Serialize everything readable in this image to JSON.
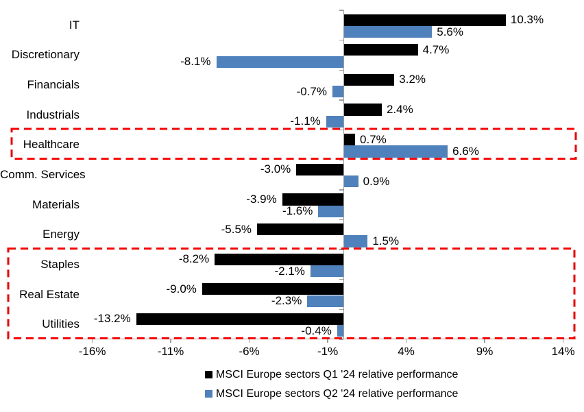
{
  "chart_data": {
    "type": "bar",
    "orientation": "horizontal",
    "title": "",
    "xlabel": "",
    "ylabel": "",
    "xlim": [
      -17.2,
      15.3
    ],
    "grid": false,
    "legend_position": "bottom",
    "axis_color": "#9d9d9d",
    "highlight_color": "#FF0000",
    "categories": [
      "IT",
      "Discretionary",
      "Financials",
      "Industrials",
      "Healthcare",
      "Comm. Services",
      "Materials",
      "Energy",
      "Staples",
      "Real Estate",
      "Utilities"
    ],
    "series": [
      {
        "name": "MSCI Europe sectors Q1 '24 relative performance",
        "color": "#000000",
        "values": [
          10.3,
          4.7,
          3.2,
          2.4,
          0.7,
          -3.0,
          -3.9,
          -5.5,
          -8.2,
          -9.0,
          -13.2
        ],
        "labels": [
          "10.3%",
          "4.7%",
          "3.2%",
          "2.4%",
          "0.7%",
          "-3.0%",
          "-3.9%",
          "-5.5%",
          "-8.2%",
          "-9.0%",
          "-13.2%"
        ]
      },
      {
        "name": "MSCI Europe sectors Q2 '24 relative performance",
        "color": "#4F81BD",
        "values": [
          5.6,
          -8.1,
          -0.7,
          -1.1,
          6.6,
          0.9,
          -1.6,
          1.5,
          -2.1,
          -2.3,
          -0.4
        ],
        "labels": [
          "5.6%",
          "-8.1%",
          "-0.7%",
          "-1.1%",
          "6.6%",
          "0.9%",
          "-1.6%",
          "1.5%",
          "-2.1%",
          "-2.3%",
          "-0.4%"
        ]
      }
    ],
    "x_ticks": [
      {
        "value": -16,
        "label": "-16%"
      },
      {
        "value": -11,
        "label": "-11%"
      },
      {
        "value": -6,
        "label": "-6%"
      },
      {
        "value": -1,
        "label": "-1%"
      },
      {
        "value": 4,
        "label": "4%"
      },
      {
        "value": 9,
        "label": "9%"
      },
      {
        "value": 14,
        "label": "14%"
      }
    ],
    "highlights": [
      {
        "categories": [
          "Healthcare"
        ],
        "style": "red-dashed-box"
      },
      {
        "categories": [
          "Staples",
          "Real Estate",
          "Utilities"
        ],
        "style": "red-dashed-box"
      }
    ]
  }
}
